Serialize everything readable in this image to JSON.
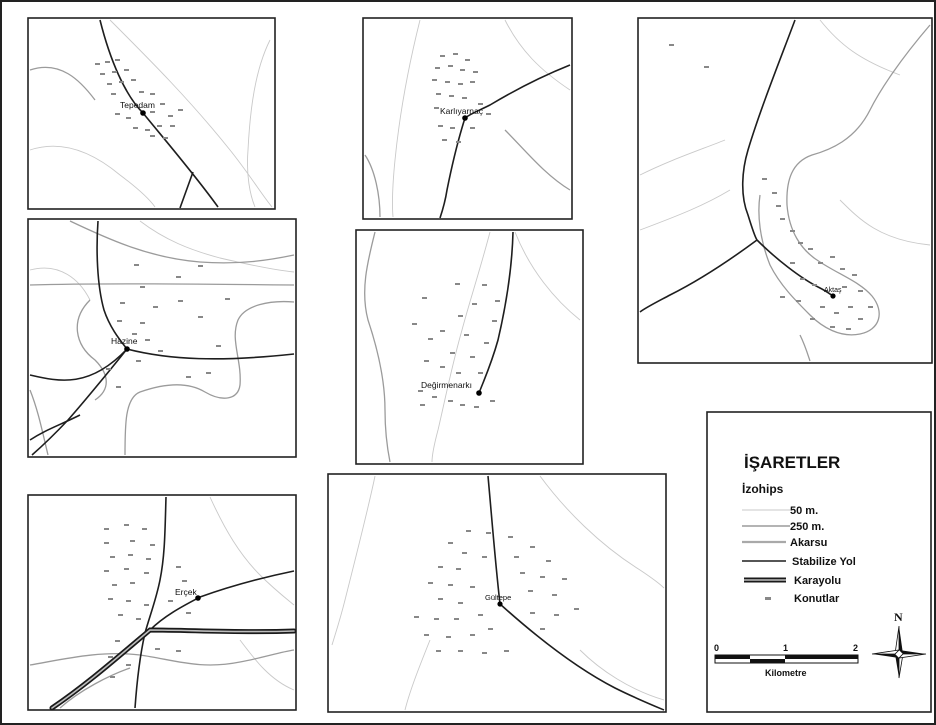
{
  "villages": [
    {
      "id": "tepedam",
      "name": "Tepedam"
    },
    {
      "id": "karlivarmac",
      "name": "Karlıyarnaç"
    },
    {
      "id": "aktas",
      "name": "Aktaş"
    },
    {
      "id": "hazine",
      "name": "Hazine"
    },
    {
      "id": "degirmenarki",
      "name": "Değirmenarkı"
    },
    {
      "id": "ercek",
      "name": "Erçek"
    },
    {
      "id": "gultepe",
      "name": "Gültepe"
    }
  ],
  "legend": {
    "title": "İŞARETLER",
    "contour_heading": "İzohips",
    "items": [
      {
        "key": "c50",
        "label": "50 m."
      },
      {
        "key": "c250",
        "label": "250 m."
      },
      {
        "key": "river",
        "label": "Akarsu"
      },
      {
        "key": "road",
        "label": "Stabilize Yol"
      },
      {
        "key": "highway",
        "label": "Karayolu"
      },
      {
        "key": "houses",
        "label": "Konutlar"
      }
    ]
  },
  "scale_bar": {
    "ticks": [
      "0",
      "1",
      "2"
    ],
    "unit_label": "Kilometre"
  },
  "north_arrow": {
    "label": "N"
  },
  "colors": {
    "contour_50": "#c9c9c9",
    "contour_250": "#9b9b9b",
    "river": "#a9a9a9",
    "road": "#1e1e1e",
    "frame": "#222222"
  }
}
